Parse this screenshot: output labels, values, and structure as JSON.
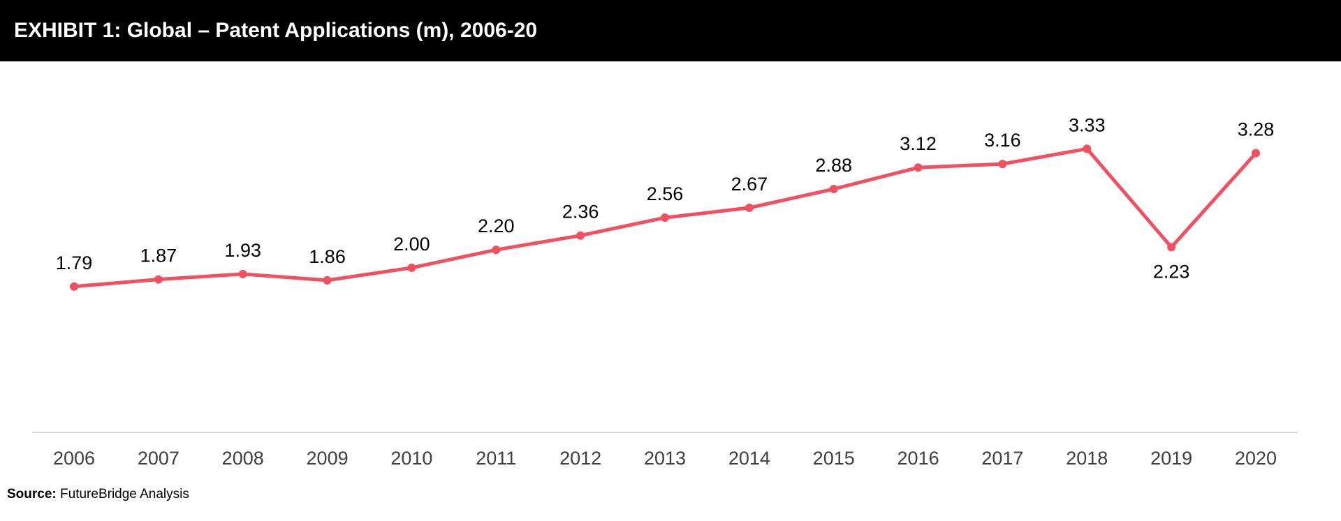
{
  "header": {
    "title": "EXHIBIT 1: Global – Patent Applications (m), 2006-20"
  },
  "footer": {
    "source_label": "Source:",
    "source_text": "FutureBridge Analysis"
  },
  "colors": {
    "line": "#f0505f",
    "axis": "#d9d9d9",
    "tick_text": "#404040",
    "label_text": "#000000"
  },
  "chart_data": {
    "type": "line",
    "title": "",
    "xlabel": "",
    "ylabel": "",
    "categories": [
      "2006",
      "2007",
      "2008",
      "2009",
      "2010",
      "2011",
      "2012",
      "2013",
      "2014",
      "2015",
      "2016",
      "2017",
      "2018",
      "2019",
      "2020"
    ],
    "series": [
      {
        "name": "",
        "values": [
          1.79,
          1.87,
          1.93,
          1.86,
          2.0,
          2.2,
          2.36,
          2.56,
          2.67,
          2.88,
          3.12,
          3.16,
          3.33,
          2.23,
          3.28
        ],
        "labels": [
          "1.79",
          "1.87",
          "1.93",
          "1.86",
          "2.00",
          "2.20",
          "2.36",
          "2.56",
          "2.67",
          "2.88",
          "3.12",
          "3.16",
          "3.33",
          "2.23",
          "3.28"
        ]
      }
    ],
    "ylim": [
      1.0,
      3.5
    ],
    "grid": false,
    "legend": "none",
    "markers": true,
    "data_labels": true
  }
}
